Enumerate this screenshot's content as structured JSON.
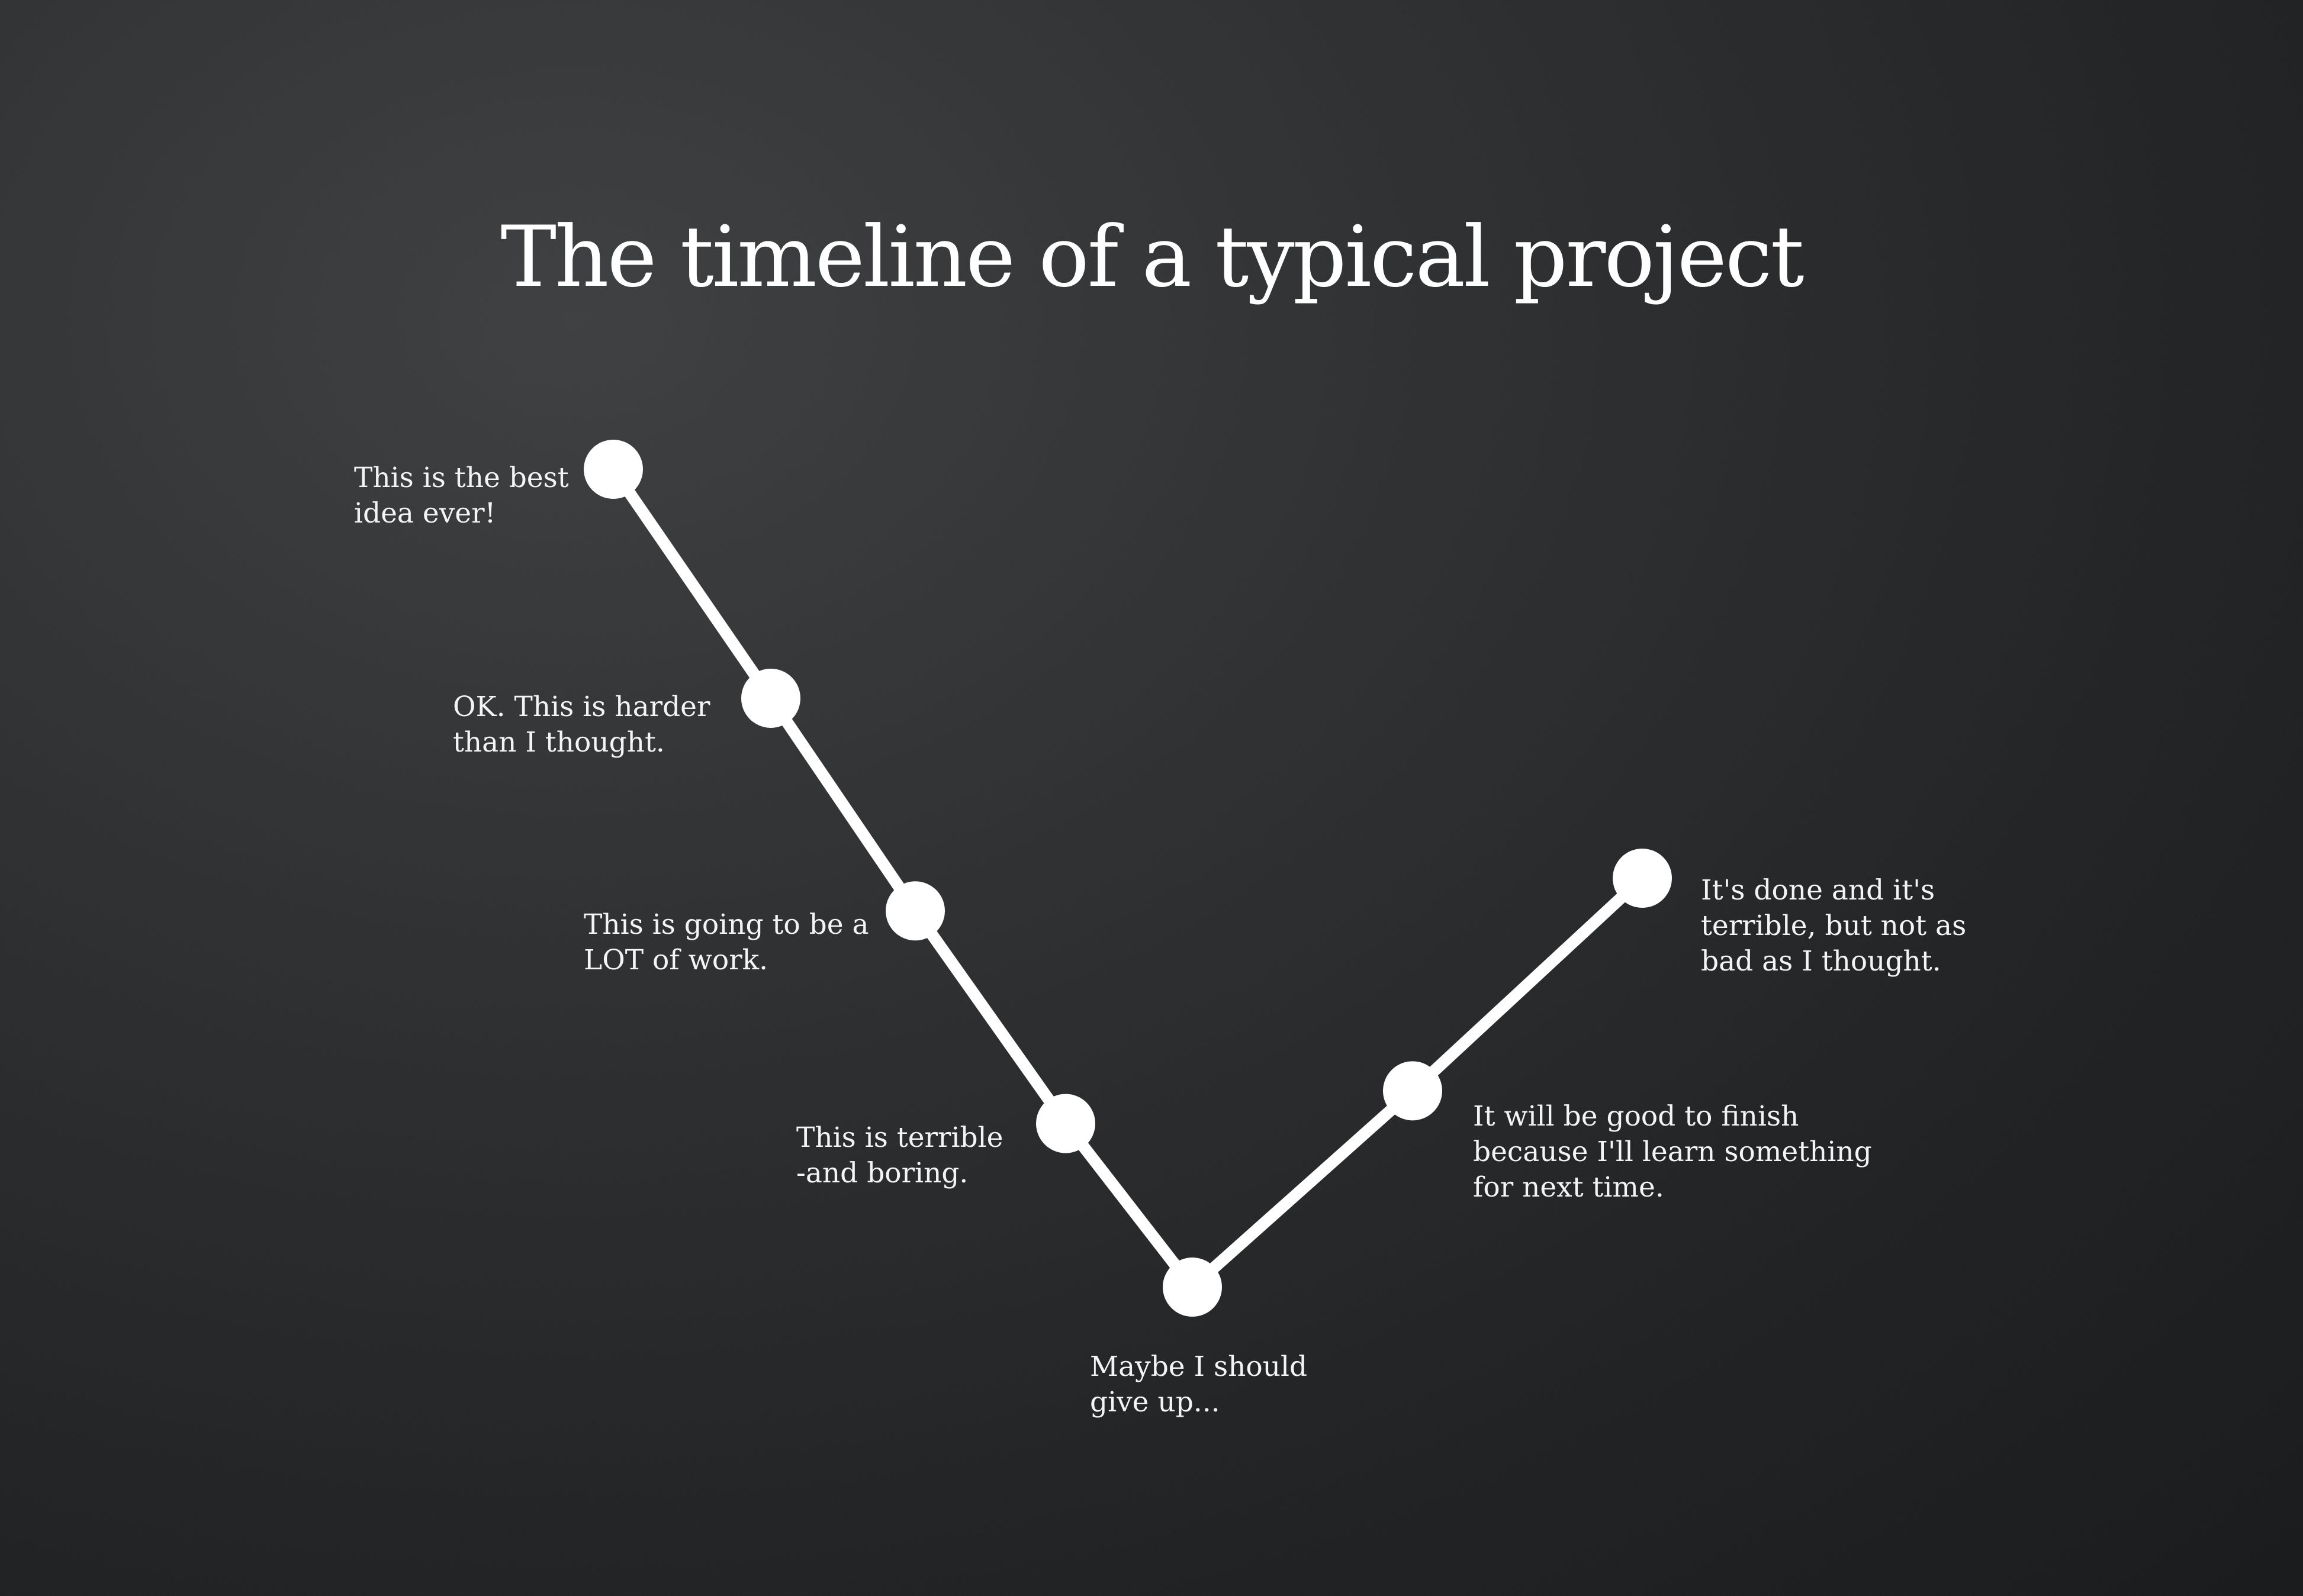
{
  "title": "The timeline of a typical project",
  "colors": {
    "background": "#1f2022",
    "line": "#ffffff",
    "text": "#ffffff"
  },
  "milestones": [
    {
      "step": 1,
      "mood": 10,
      "lines": [
        "This is the best",
        "idea ever!"
      ]
    },
    {
      "step": 2,
      "mood": 7.2,
      "lines": [
        "OK. This is harder",
        "than I thought."
      ]
    },
    {
      "step": 3,
      "mood": 4.6,
      "lines": [
        "This is going to be a",
        "LOT of work."
      ]
    },
    {
      "step": 4,
      "mood": 2,
      "lines": [
        "This is terrible",
        "-and boring."
      ]
    },
    {
      "step": 5,
      "mood": 0,
      "lines": [
        "Maybe I should",
        "give up..."
      ]
    },
    {
      "step": 6,
      "mood": 2.4,
      "lines": [
        "It will be good to finish",
        "because I'll learn something",
        "for next time."
      ]
    },
    {
      "step": 7,
      "mood": 5,
      "lines": [
        "It's done and it's",
        "terrible, but not as",
        "bad as I thought."
      ]
    }
  ]
}
